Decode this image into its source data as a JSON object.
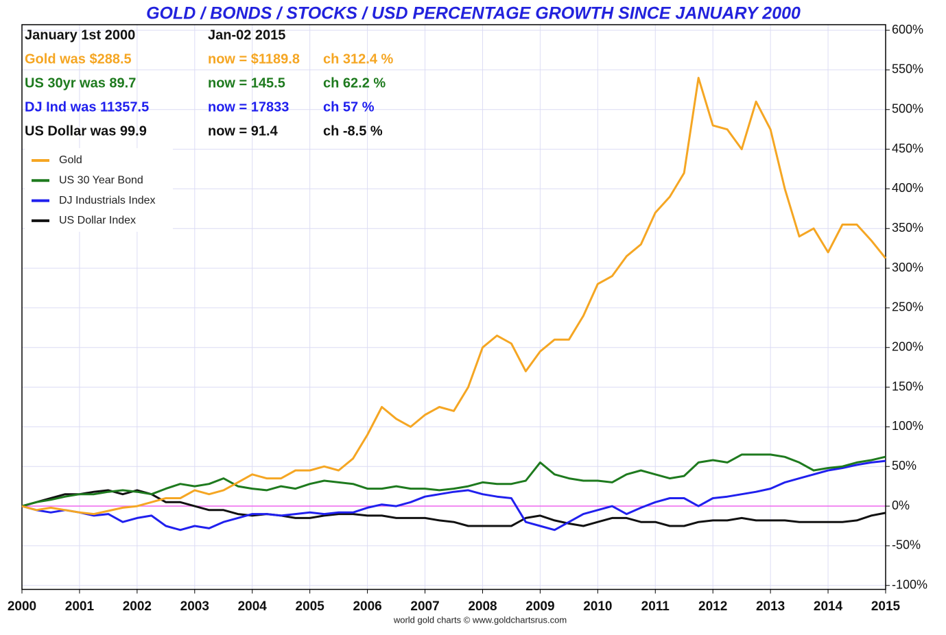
{
  "chart_data": {
    "type": "line",
    "title": "GOLD / BONDS / STOCKS / USD PERCENTAGE GROWTH SINCE JANUARY 2000",
    "source": "world gold charts © www.goldchartsrus.com",
    "info_rows": [
      {
        "color": "#111111",
        "cells": [
          "January 1st 2000",
          "Jan-02  2015"
        ]
      },
      {
        "color": "#f5a623",
        "cells": [
          "Gold was $288.5",
          "now = $1189.8",
          "ch 312.4 %"
        ]
      },
      {
        "color": "#1e7a1e",
        "cells": [
          "US 30yr was 89.7",
          "now = 145.5",
          "ch 62.2 %"
        ]
      },
      {
        "color": "#2020ee",
        "cells": [
          "DJ Ind was 11357.5",
          "now = 17833",
          "ch 57 %"
        ]
      },
      {
        "color": "#111111",
        "cells": [
          "US Dollar was 99.9",
          "now = 91.4",
          "ch -8.5 %"
        ]
      }
    ],
    "legend": "upper left",
    "grid": true,
    "zero_line_color": "#ee66ee",
    "xlim": [
      2000,
      2015
    ],
    "xticks": [
      2000,
      2001,
      2002,
      2003,
      2004,
      2005,
      2006,
      2007,
      2008,
      2009,
      2010,
      2011,
      2012,
      2013,
      2014,
      2015
    ],
    "ylim": [
      -105,
      607
    ],
    "yticks": [
      {
        "value": -100,
        "label": "-100%"
      },
      {
        "value": -50,
        "label": "-50%"
      },
      {
        "value": 0,
        "label": "0%"
      },
      {
        "value": 50,
        "label": "50%"
      },
      {
        "value": 100,
        "label": "100%"
      },
      {
        "value": 150,
        "label": "150%"
      },
      {
        "value": 200,
        "label": "200%"
      },
      {
        "value": 250,
        "label": "250%"
      },
      {
        "value": 300,
        "label": "300%"
      },
      {
        "value": 350,
        "label": "350%"
      },
      {
        "value": 400,
        "label": "400%"
      },
      {
        "value": 450,
        "label": "450%"
      },
      {
        "value": 500,
        "label": "500%"
      },
      {
        "value": 550,
        "label": "550%"
      },
      {
        "value": 600,
        "label": "600%"
      }
    ],
    "x": [
      2000,
      2000.25,
      2000.5,
      2000.75,
      2001,
      2001.25,
      2001.5,
      2001.75,
      2002,
      2002.25,
      2002.5,
      2002.75,
      2003,
      2003.25,
      2003.5,
      2003.75,
      2004,
      2004.25,
      2004.5,
      2004.75,
      2005,
      2005.25,
      2005.5,
      2005.75,
      2006,
      2006.25,
      2006.5,
      2006.75,
      2007,
      2007.25,
      2007.5,
      2007.75,
      2008,
      2008.25,
      2008.5,
      2008.75,
      2009,
      2009.25,
      2009.5,
      2009.75,
      2010,
      2010.25,
      2010.5,
      2010.75,
      2011,
      2011.25,
      2011.5,
      2011.75,
      2012,
      2012.25,
      2012.5,
      2012.75,
      2013,
      2013.25,
      2013.5,
      2013.75,
      2014,
      2014.25,
      2014.5,
      2014.75,
      2015
    ],
    "series": [
      {
        "name": "Gold",
        "color": "#f5a623",
        "values": [
          0,
          -5,
          -2,
          -5,
          -8,
          -10,
          -6,
          -2,
          0,
          5,
          10,
          10,
          20,
          15,
          20,
          30,
          40,
          35,
          35,
          45,
          45,
          50,
          45,
          60,
          90,
          125,
          110,
          100,
          115,
          125,
          120,
          150,
          200,
          215,
          205,
          170,
          195,
          210,
          210,
          240,
          280,
          290,
          315,
          330,
          370,
          390,
          420,
          540,
          480,
          475,
          450,
          510,
          475,
          400,
          340,
          350,
          320,
          355,
          355,
          335,
          312.4
        ]
      },
      {
        "name": "US 30 Year Bond",
        "color": "#1e7a1e",
        "values": [
          0,
          5,
          8,
          12,
          15,
          15,
          18,
          20,
          18,
          15,
          22,
          28,
          25,
          28,
          35,
          25,
          22,
          20,
          25,
          22,
          28,
          32,
          30,
          28,
          22,
          22,
          25,
          22,
          22,
          20,
          22,
          25,
          30,
          28,
          28,
          32,
          55,
          40,
          35,
          32,
          32,
          30,
          40,
          45,
          40,
          35,
          38,
          55,
          58,
          55,
          65,
          65,
          65,
          62,
          55,
          45,
          48,
          50,
          55,
          58,
          62.2
        ]
      },
      {
        "name": "DJ Industrials Index",
        "color": "#2020ee",
        "values": [
          0,
          -5,
          -8,
          -5,
          -8,
          -12,
          -10,
          -20,
          -15,
          -12,
          -25,
          -30,
          -25,
          -28,
          -20,
          -15,
          -10,
          -10,
          -12,
          -10,
          -8,
          -10,
          -8,
          -8,
          -2,
          2,
          0,
          5,
          12,
          15,
          18,
          20,
          15,
          12,
          10,
          -20,
          -25,
          -30,
          -20,
          -10,
          -5,
          0,
          -10,
          -2,
          5,
          10,
          10,
          0,
          10,
          12,
          15,
          18,
          22,
          30,
          35,
          40,
          45,
          48,
          52,
          55,
          57
        ]
      },
      {
        "name": "US Dollar Index",
        "color": "#111111",
        "values": [
          0,
          5,
          10,
          15,
          15,
          18,
          20,
          15,
          20,
          15,
          5,
          5,
          0,
          -5,
          -5,
          -10,
          -12,
          -10,
          -12,
          -15,
          -15,
          -12,
          -10,
          -10,
          -12,
          -12,
          -15,
          -15,
          -15,
          -18,
          -20,
          -25,
          -25,
          -25,
          -25,
          -15,
          -12,
          -18,
          -22,
          -25,
          -20,
          -15,
          -15,
          -20,
          -20,
          -25,
          -25,
          -20,
          -18,
          -18,
          -15,
          -18,
          -18,
          -18,
          -20,
          -20,
          -20,
          -20,
          -18,
          -12,
          -8.5
        ]
      }
    ]
  }
}
